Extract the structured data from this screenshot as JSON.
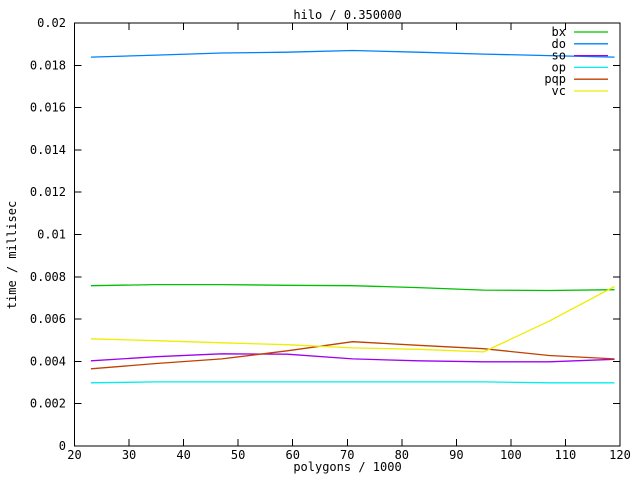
{
  "chart_data": {
    "type": "line",
    "title": "hilo / 0.350000",
    "xlabel": "polygons / 1000",
    "ylabel": "time / millisec",
    "xlim": [
      20,
      120
    ],
    "ylim": [
      0,
      0.02
    ],
    "grid": false,
    "legend_position": "top-right-inside",
    "xticks": [
      20,
      30,
      40,
      50,
      60,
      70,
      80,
      90,
      100,
      110,
      120
    ],
    "xtick_labels": [
      "20",
      "30",
      "40",
      "50",
      "60",
      "70",
      "80",
      "90",
      "100",
      "110",
      "120"
    ],
    "ytick_values": [
      0,
      0.002,
      0.004,
      0.006,
      0.008,
      0.01,
      0.012,
      0.014,
      0.016,
      0.018,
      0.02
    ],
    "ytick_labels": [
      "0",
      "0.002",
      "0.004",
      "0.006",
      "0.008",
      "0.01",
      "0.012",
      "0.014",
      "0.016",
      "0.018",
      "0.02"
    ],
    "x": [
      23,
      35,
      47,
      59,
      71,
      83,
      95,
      107,
      119
    ],
    "series": [
      {
        "name": "bx",
        "color": "#00c000",
        "values": [
          0.00758,
          0.00763,
          0.00763,
          0.0076,
          0.00758,
          0.00749,
          0.00737,
          0.00735,
          0.00739
        ]
      },
      {
        "name": "do",
        "color": "#0080ff",
        "values": [
          0.01839,
          0.01848,
          0.01858,
          0.01862,
          0.0187,
          0.01862,
          0.01853,
          0.01846,
          0.01839
        ]
      },
      {
        "name": "so",
        "color": "#a000f0",
        "values": [
          0.00403,
          0.00422,
          0.00436,
          0.00434,
          0.00412,
          0.00403,
          0.00398,
          0.00398,
          0.0041
        ]
      },
      {
        "name": "op",
        "color": "#00eeee",
        "values": [
          0.00299,
          0.00303,
          0.00303,
          0.00303,
          0.00303,
          0.00303,
          0.00303,
          0.00299,
          0.00299
        ]
      },
      {
        "name": "pqp",
        "color": "#c04000",
        "values": [
          0.00365,
          0.0039,
          0.00412,
          0.0045,
          0.00493,
          0.00476,
          0.0046,
          0.00428,
          0.00412
        ]
      },
      {
        "name": "vc",
        "color": "#eeee00",
        "values": [
          0.00507,
          0.00498,
          0.00488,
          0.00479,
          0.00464,
          0.00457,
          0.00445,
          0.0059,
          0.00754
        ]
      }
    ],
    "colors": {
      "background": "#ffffff",
      "axis": "#000000",
      "text": "#000000"
    }
  }
}
